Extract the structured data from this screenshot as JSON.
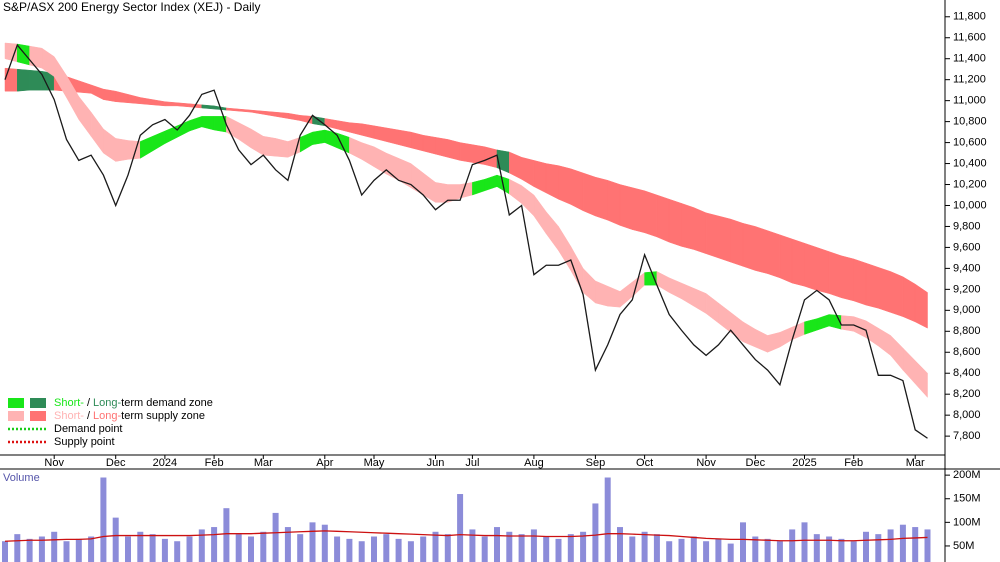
{
  "chart_data": [
    {
      "type": "line",
      "title": "S&P/ASX 200 Energy Sector Index (XEJ) - Daily",
      "categories": [
        null,
        null,
        null,
        null,
        "Nov",
        null,
        null,
        null,
        null,
        "Dec",
        null,
        null,
        null,
        "2024",
        null,
        null,
        null,
        "Feb",
        null,
        null,
        null,
        "Mar",
        null,
        null,
        null,
        null,
        "Apr",
        null,
        null,
        null,
        "May",
        null,
        null,
        null,
        null,
        "Jun",
        null,
        null,
        "Jul",
        null,
        null,
        null,
        null,
        "Aug",
        null,
        null,
        null,
        null,
        "Sep",
        null,
        null,
        null,
        "Oct",
        null,
        null,
        null,
        null,
        "Nov",
        null,
        null,
        null,
        "Dec",
        null,
        null,
        null,
        "2025",
        null,
        null,
        null,
        "Feb",
        null,
        null,
        null,
        null,
        "Mar",
        null
      ],
      "values": [
        11200,
        11530,
        11390,
        11250,
        11010,
        10630,
        10430,
        10480,
        10290,
        10000,
        10290,
        10670,
        10770,
        10820,
        10720,
        10860,
        11060,
        11100,
        10770,
        10530,
        10390,
        10480,
        10340,
        10240,
        10670,
        10860,
        10770,
        10670,
        10430,
        10100,
        10240,
        10340,
        10240,
        10200,
        10100,
        9960,
        10050,
        10050,
        10390,
        10430,
        10480,
        9910,
        10000,
        9340,
        9430,
        9430,
        9480,
        9150,
        8430,
        8670,
        8960,
        9100,
        9530,
        9240,
        8960,
        8810,
        8670,
        8570,
        8670,
        8810,
        8670,
        8530,
        8430,
        8290,
        8720,
        9100,
        9190,
        9100,
        8860,
        8860,
        8810,
        8380,
        8380,
        8330,
        7860,
        7780
      ],
      "color": "#1a1a1a",
      "zones": [
        {
          "upper": [
            11550,
            11540,
            11520,
            11500,
            11420,
            11240,
            11040,
            10890,
            10730,
            10640,
            10620,
            10610,
            10660,
            10710,
            10760,
            10810,
            10850,
            10850,
            10850,
            10790,
            10730,
            10660,
            10640,
            10610,
            10650,
            10700,
            10720,
            10690,
            10650,
            10600,
            10560,
            10500,
            10450,
            10400,
            10310,
            10220,
            10200,
            10200,
            10220,
            10250,
            10290,
            10250,
            10190,
            10100,
            9940,
            9800,
            9610,
            9400,
            9280,
            9230,
            9180,
            9270,
            9360,
            9370,
            9310,
            9260,
            9210,
            9160,
            9070,
            8980,
            8890,
            8820,
            8760,
            8790,
            8840,
            8890,
            8920,
            8960,
            8950,
            8940,
            8900,
            8830,
            8760,
            8640,
            8520,
            8400
          ],
          "lower": [
            11400,
            11370,
            11340,
            11310,
            11230,
            11030,
            10820,
            10660,
            10500,
            10420,
            10440,
            10450,
            10520,
            10590,
            10650,
            10710,
            10750,
            10720,
            10700,
            10630,
            10550,
            10480,
            10470,
            10460,
            10510,
            10580,
            10600,
            10550,
            10500,
            10440,
            10370,
            10300,
            10240,
            10170,
            10100,
            10030,
            10030,
            10070,
            10100,
            10140,
            10180,
            10110,
            10020,
            9900,
            9730,
            9570,
            9380,
            9170,
            9070,
            9040,
            9030,
            9130,
            9240,
            9240,
            9170,
            9110,
            9040,
            8970,
            8880,
            8790,
            8700,
            8650,
            8600,
            8650,
            8720,
            8770,
            8810,
            8850,
            8820,
            8800,
            8740,
            8660,
            8570,
            8430,
            8300,
            8170
          ]
        },
        {
          "upper": [
            11310,
            11300,
            11290,
            11280,
            11260,
            11230,
            11190,
            11150,
            11110,
            11090,
            11060,
            11030,
            11010,
            10990,
            10980,
            10970,
            10960,
            10950,
            10930,
            10920,
            10910,
            10900,
            10890,
            10880,
            10860,
            10850,
            10830,
            10810,
            10790,
            10780,
            10760,
            10740,
            10720,
            10700,
            10670,
            10650,
            10630,
            10600,
            10580,
            10560,
            10530,
            10510,
            10460,
            10430,
            10400,
            10380,
            10350,
            10310,
            10270,
            10240,
            10200,
            10170,
            10140,
            10100,
            10060,
            10020,
            9980,
            9930,
            9900,
            9870,
            9830,
            9800,
            9760,
            9720,
            9680,
            9640,
            9600,
            9560,
            9520,
            9490,
            9450,
            9410,
            9370,
            9320,
            9250,
            9170
          ],
          "lower": [
            11090,
            11090,
            11100,
            11100,
            11100,
            11090,
            11080,
            11070,
            11010,
            10990,
            10980,
            10970,
            10960,
            10950,
            10950,
            10940,
            10930,
            10920,
            10910,
            10900,
            10890,
            10870,
            10850,
            10830,
            10810,
            10780,
            10760,
            10730,
            10700,
            10670,
            10640,
            10610,
            10580,
            10550,
            10520,
            10490,
            10460,
            10430,
            10410,
            10390,
            10360,
            10310,
            10250,
            10180,
            10120,
            10060,
            10010,
            9950,
            9900,
            9860,
            9810,
            9770,
            9740,
            9700,
            9650,
            9610,
            9580,
            9540,
            9500,
            9460,
            9420,
            9380,
            9350,
            9310,
            9260,
            9230,
            9190,
            9160,
            9120,
            9090,
            9050,
            9020,
            8980,
            8940,
            8890,
            8830
          ]
        }
      ],
      "legend": [
        {
          "short": "Short-",
          "sep": "/",
          "long": "Long-",
          "text": "term demand zone",
          "colors": [
            "#19e619",
            "#2e8b57"
          ]
        },
        {
          "short": "Short-",
          "sep": "/",
          "long": "Long-",
          "text": "term supply zone",
          "colors": [
            "#ffb3b3",
            "#ff7373"
          ]
        },
        {
          "text": "Demand point",
          "color": "#19cc19"
        },
        {
          "text": "Supply point",
          "color": "#dd1111"
        }
      ],
      "ylim": [
        7620,
        11960
      ],
      "yticks": [
        {
          "value": 7800,
          "label": "7,800"
        },
        {
          "value": 8000,
          "label": "8,000"
        },
        {
          "value": 8200,
          "label": "8,200"
        },
        {
          "value": 8400,
          "label": "8,400"
        },
        {
          "value": 8600,
          "label": "8,600"
        },
        {
          "value": 8800,
          "label": "8,800"
        },
        {
          "value": 9000,
          "label": "9,000"
        },
        {
          "value": 9200,
          "label": "9,200"
        },
        {
          "value": 9400,
          "label": "9,400"
        },
        {
          "value": 9600,
          "label": "9,600"
        },
        {
          "value": 9800,
          "label": "9,800"
        },
        {
          "value": 10000,
          "label": "10,000"
        },
        {
          "value": 10200,
          "label": "10,200"
        },
        {
          "value": 10400,
          "label": "10,400"
        },
        {
          "value": 10600,
          "label": "10,600"
        },
        {
          "value": 10800,
          "label": "10,800"
        },
        {
          "value": 11000,
          "label": "11,000"
        },
        {
          "value": 11200,
          "label": "11,200"
        },
        {
          "value": 11400,
          "label": "11,400"
        },
        {
          "value": 11600,
          "label": "11,600"
        },
        {
          "value": 11800,
          "label": "11,800"
        }
      ]
    },
    {
      "type": "bar",
      "title": "Volume",
      "values": [
        60,
        75,
        65,
        70,
        80,
        60,
        65,
        70,
        195,
        110,
        70,
        80,
        75,
        65,
        60,
        70,
        85,
        90,
        130,
        75,
        70,
        80,
        120,
        90,
        75,
        100,
        95,
        70,
        65,
        60,
        70,
        75,
        65,
        60,
        70,
        80,
        75,
        160,
        85,
        70,
        90,
        80,
        75,
        85,
        70,
        65,
        75,
        80,
        140,
        195,
        90,
        70,
        80,
        75,
        60,
        65,
        70,
        60,
        65,
        55,
        100,
        70,
        65,
        60,
        85,
        100,
        75,
        70,
        65,
        60,
        80,
        75,
        85,
        95,
        90,
        85
      ],
      "color": "#8c8cd9",
      "average": {
        "color": "#cc1111",
        "values": [
          60,
          61,
          62,
          62,
          63,
          64,
          64,
          65,
          70,
          72,
          72,
          72,
          72,
          72,
          72,
          72,
          73,
          74,
          76,
          76,
          76,
          77,
          78,
          79,
          80,
          81,
          82,
          81,
          80,
          79,
          78,
          77,
          76,
          75,
          74,
          73,
          72,
          74,
          73,
          72,
          72,
          71,
          71,
          71,
          70,
          70,
          70,
          71,
          73,
          76,
          76,
          75,
          74,
          73,
          72,
          70,
          68,
          66,
          65,
          64,
          64,
          63,
          62,
          61,
          61,
          62,
          62,
          62,
          61,
          61,
          62,
          63,
          64,
          66,
          67,
          68
        ]
      },
      "ylim": [
        16,
        213
      ],
      "yticks": [
        {
          "value": 50,
          "label": "50M"
        },
        {
          "value": 100,
          "label": "100M"
        },
        {
          "value": 150,
          "label": "150M"
        },
        {
          "value": 200,
          "label": "200M"
        }
      ]
    }
  ]
}
